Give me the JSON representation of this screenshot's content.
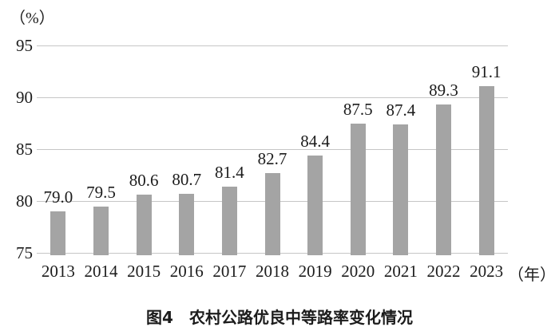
{
  "chart_data": {
    "type": "bar",
    "title": "图4　农村公路优良中等路率变化情况",
    "ylabel": "（%）",
    "xlabel": "（年）",
    "categories": [
      "2013",
      "2014",
      "2015",
      "2016",
      "2017",
      "2018",
      "2019",
      "2020",
      "2021",
      "2022",
      "2023"
    ],
    "values": [
      79.0,
      79.5,
      80.6,
      80.7,
      81.4,
      82.7,
      84.4,
      87.5,
      87.4,
      89.3,
      91.1
    ],
    "value_labels": [
      "79.0",
      "79.5",
      "80.6",
      "80.7",
      "81.4",
      "82.7",
      "84.4",
      "87.5",
      "87.4",
      "89.3",
      "91.1"
    ],
    "ylim": [
      75,
      95
    ],
    "yticks": [
      95,
      90,
      85,
      80,
      75
    ],
    "grid": true,
    "legend_position": "none",
    "bar_color": "#a4a4a4",
    "gridline_color": "#c6c6c6",
    "text_color": "#1c1c1c",
    "background_color": "#ffffff"
  }
}
